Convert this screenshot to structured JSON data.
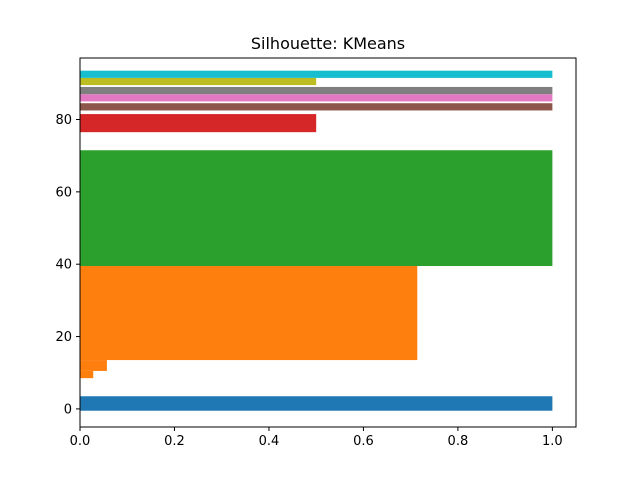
{
  "chart_data": {
    "type": "bar",
    "orientation": "horizontal",
    "title": "Silhouette: KMeans",
    "xlabel": "",
    "ylabel": "",
    "xlim": [
      0.0,
      1.05
    ],
    "ylim": [
      -5,
      97
    ],
    "grid": false,
    "x_ticks": [
      0.0,
      0.2,
      0.4,
      0.6,
      0.8,
      1.0
    ],
    "x_tick_labels": [
      "0.0",
      "0.2",
      "0.4",
      "0.6",
      "0.8",
      "1.0"
    ],
    "y_ticks": [
      0,
      20,
      40,
      60,
      80
    ],
    "y_tick_labels": [
      "0",
      "20",
      "40",
      "60",
      "80"
    ],
    "clusters": [
      {
        "color": "#1f77b4",
        "bars": [
          {
            "y0": -0.5,
            "y1": 3.5,
            "value": 1.0
          }
        ]
      },
      {
        "color": "#ff7f0e",
        "bars": [
          {
            "y0": 8.5,
            "y1": 10.5,
            "value": 0.028
          },
          {
            "y0": 10.5,
            "y1": 13.5,
            "value": 0.057
          },
          {
            "y0": 13.5,
            "y1": 39.5,
            "value": 0.714
          }
        ]
      },
      {
        "color": "#2ca02c",
        "bars": [
          {
            "y0": 39.5,
            "y1": 71.5,
            "value": 1.0
          }
        ]
      },
      {
        "color": "#d62728",
        "bars": [
          {
            "y0": 76.5,
            "y1": 81.5,
            "value": 0.5
          }
        ]
      },
      {
        "color": "#8c564b",
        "bars": [
          {
            "y0": 82.5,
            "y1": 84.5,
            "value": 1.0
          }
        ]
      },
      {
        "color": "#e377c2",
        "bars": [
          {
            "y0": 85.0,
            "y1": 87.0,
            "value": 1.0
          }
        ]
      },
      {
        "color": "#7f7f7f",
        "bars": [
          {
            "y0": 87.0,
            "y1": 89.0,
            "value": 1.0
          }
        ]
      },
      {
        "color": "#bcbd22",
        "bars": [
          {
            "y0": 89.5,
            "y1": 91.5,
            "value": 0.5
          }
        ]
      },
      {
        "color": "#17becf",
        "bars": [
          {
            "y0": 91.5,
            "y1": 93.5,
            "value": 1.0
          }
        ]
      }
    ]
  }
}
